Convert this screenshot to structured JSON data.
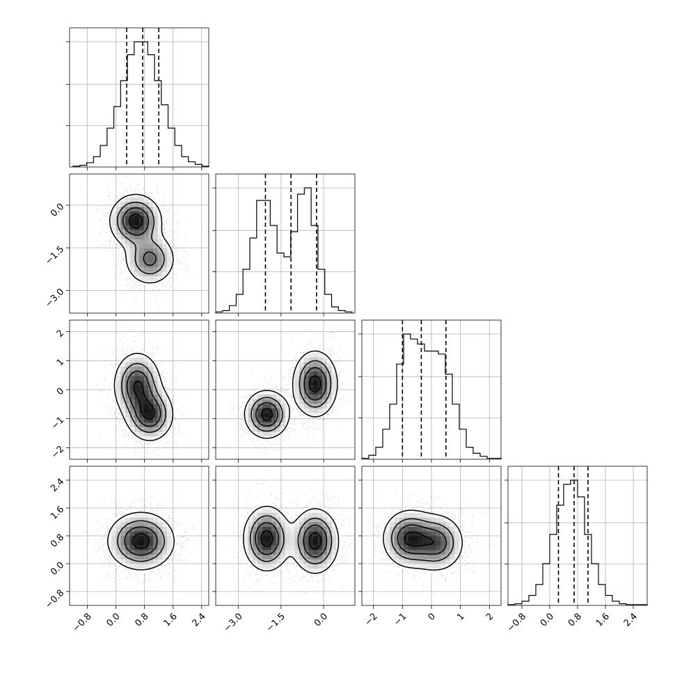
{
  "chart_data": {
    "type": "corner",
    "dimensions": 4,
    "grid": true,
    "colors": {
      "line": "#000000",
      "grid": "#b0b0b0",
      "scatter": "#777777"
    },
    "params": [
      {
        "range": [
          -1.3,
          2.6
        ],
        "ticks": [
          -0.8,
          0.0,
          0.8,
          1.6,
          2.4
        ],
        "tick_labels": [
          "−0.8",
          "0.0",
          "0.8",
          "1.6",
          "2.4"
        ]
      },
      {
        "range": [
          -3.8,
          1.1
        ],
        "ticks": [
          -3.0,
          -1.5,
          0.0
        ],
        "tick_labels": [
          "−3.0",
          "−1.5",
          "0.0"
        ]
      },
      {
        "range": [
          -2.4,
          2.4
        ],
        "ticks": [
          -2,
          -1,
          0,
          1,
          2
        ],
        "tick_labels": [
          "−2",
          "−1",
          "0",
          "1",
          "2"
        ]
      },
      {
        "range": [
          -1.2,
          2.8
        ],
        "ticks": [
          -0.8,
          0.0,
          0.8,
          1.6,
          2.4
        ],
        "tick_labels": [
          "−0.8",
          "0.0",
          "0.8",
          "1.6",
          "2.4"
        ]
      }
    ],
    "histograms": [
      {
        "param": 0,
        "bins": [
          -1.2,
          2.6
        ],
        "counts": [
          1,
          2,
          5,
          12,
          25,
          45,
          70,
          100,
          130,
          145,
          145,
          130,
          100,
          72,
          45,
          25,
          12,
          6,
          3,
          1
        ],
        "quantiles": [
          0.3,
          0.75,
          1.2
        ]
      },
      {
        "param": 1,
        "bins": [
          -3.8,
          1.0
        ],
        "counts": [
          1,
          2,
          6,
          15,
          35,
          60,
          90,
          90,
          70,
          48,
          45,
          65,
          95,
          100,
          70,
          35,
          15,
          5,
          2,
          1
        ],
        "quantiles": [
          -2.05,
          -1.15,
          -0.25
        ]
      },
      {
        "param": 2,
        "bins": [
          -2.4,
          2.4
        ],
        "counts": [
          1,
          4,
          12,
          30,
          55,
          95,
          125,
          120,
          115,
          108,
          108,
          105,
          85,
          55,
          30,
          12,
          6,
          3,
          1,
          1
        ],
        "quantiles": [
          -1.0,
          -0.35,
          0.5
        ]
      },
      {
        "param": 3,
        "bins": [
          -1.2,
          2.8
        ],
        "counts": [
          1,
          2,
          5,
          12,
          25,
          50,
          85,
          120,
          145,
          150,
          130,
          85,
          50,
          25,
          12,
          5,
          2,
          1,
          1,
          1
        ],
        "quantiles": [
          0.25,
          0.7,
          1.1
        ]
      }
    ],
    "pairs": [
      {
        "x": 0,
        "y": 1,
        "modes": [
          {
            "x": 0.55,
            "y": -0.55,
            "sx": 0.35,
            "sy": 0.45,
            "w": 0.6
          },
          {
            "x": 0.95,
            "y": -1.9,
            "sx": 0.35,
            "sy": 0.45,
            "w": 0.4
          }
        ],
        "levels": [
          0.12,
          0.35,
          0.6,
          0.88
        ]
      },
      {
        "x": 0,
        "y": 2,
        "modes": [
          {
            "x": 0.6,
            "y": 0.15,
            "sx": 0.32,
            "sy": 0.55,
            "w": 0.5
          },
          {
            "x": 0.95,
            "y": -0.85,
            "sx": 0.32,
            "sy": 0.45,
            "w": 0.5
          }
        ],
        "levels": [
          0.12,
          0.35,
          0.6,
          0.88
        ]
      },
      {
        "x": 1,
        "y": 2,
        "modes": [
          {
            "x": -2.0,
            "y": -0.85,
            "sx": 0.38,
            "sy": 0.4,
            "w": 0.5
          },
          {
            "x": -0.3,
            "y": 0.2,
            "sx": 0.38,
            "sy": 0.55,
            "w": 0.5
          }
        ],
        "levels": [
          0.12,
          0.35,
          0.6,
          0.88
        ]
      },
      {
        "x": 0,
        "y": 3,
        "modes": [
          {
            "x": 0.7,
            "y": 0.65,
            "sx": 0.45,
            "sy": 0.4,
            "w": 1.0
          }
        ],
        "levels": [
          0.12,
          0.35,
          0.6,
          0.88
        ]
      },
      {
        "x": 1,
        "y": 3,
        "modes": [
          {
            "x": -2.0,
            "y": 0.72,
            "sx": 0.4,
            "sy": 0.45,
            "w": 0.5
          },
          {
            "x": -0.3,
            "y": 0.65,
            "sx": 0.4,
            "sy": 0.45,
            "w": 0.5
          }
        ],
        "levels": [
          0.12,
          0.35,
          0.6,
          0.88
        ]
      },
      {
        "x": 2,
        "y": 3,
        "modes": [
          {
            "x": -0.75,
            "y": 0.72,
            "sx": 0.45,
            "sy": 0.4,
            "w": 0.55
          },
          {
            "x": 0.2,
            "y": 0.6,
            "sx": 0.45,
            "sy": 0.4,
            "w": 0.45
          }
        ],
        "levels": [
          0.12,
          0.35,
          0.6,
          0.88
        ]
      }
    ]
  }
}
